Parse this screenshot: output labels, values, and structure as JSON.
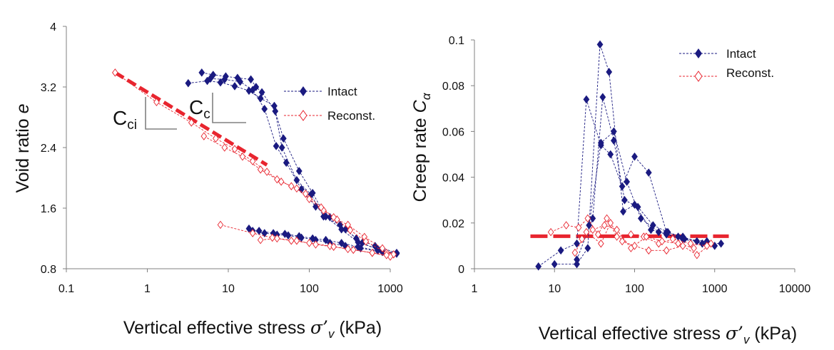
{
  "colors": {
    "intact": "#1a1a80",
    "reconst": "#e8252f",
    "axis": "#808080",
    "text": "#111111",
    "annot": "#808080"
  },
  "chart_data": [
    {
      "type": "scatter",
      "xscale": "log",
      "xlim": [
        0.1,
        1000
      ],
      "ylim": [
        0.8,
        4
      ],
      "xticks": [
        "0.1",
        "1",
        "10",
        "100",
        "1000"
      ],
      "yticks": [
        "0.8",
        "1.6",
        "2.4",
        "3.2",
        "4"
      ],
      "xlabel": "Vertical effective stress ",
      "xlabel_symbol": "σ’",
      "xlabel_sub": "v",
      "xlabel_unit": " (kPa)",
      "ylabel": "Void ratio ",
      "ylabel_symbol": "e",
      "legend": {
        "position": "right",
        "entries": [
          "Intact",
          "Reconst."
        ]
      },
      "annotations": {
        "cci": "C",
        "cci_sub": "ci",
        "cc": "C",
        "cc_sub": "c"
      },
      "cci_line": {
        "x": [
          0.4,
          30
        ],
        "y": [
          3.39,
          2.17
        ]
      },
      "series": [
        {
          "name": "Intact",
          "marker": "filled-diamond",
          "paths": [
            {
              "x": [
                4.7,
                6.5,
                9.3,
                13,
                19,
                22,
                26,
                38,
                48,
                75,
                110,
                160,
                250,
                400,
                700,
                1200
              ],
              "y": [
                3.39,
                3.36,
                3.34,
                3.32,
                3.3,
                3.2,
                3.13,
                2.88,
                2.52,
                2.09,
                1.8,
                1.49,
                1.32,
                1.15,
                1.06,
                1.0
              ]
            },
            {
              "x": [
                3.2,
                5.5,
                8,
                12,
                18,
                25,
                37,
                46,
                70,
                105,
                150,
                240,
                380,
                650,
                1200
              ],
              "y": [
                3.25,
                3.28,
                3.26,
                3.21,
                3.15,
                3.05,
                2.95,
                2.4,
                1.97,
                1.78,
                1.49,
                1.38,
                1.2,
                1.1,
                1.01
              ]
            },
            {
              "x": [
                6,
                9,
                14,
                20,
                28,
                39,
                52,
                80,
                120,
                180,
                280,
                450,
                800
              ],
              "y": [
                3.31,
                3.3,
                3.27,
                3.16,
                2.91,
                2.42,
                2.2,
                1.85,
                1.62,
                1.48,
                1.32,
                1.14,
                1.03
              ]
            },
            {
              "x": [
                18,
                24,
                36,
                50,
                75,
                110,
                160,
                250,
                400,
                700,
                1200
              ],
              "y": [
                1.33,
                1.3,
                1.27,
                1.26,
                1.23,
                1.2,
                1.18,
                1.14,
                1.09,
                1.04,
                1.0
              ]
            },
            {
              "x": [
                20,
                28,
                40,
                55,
                80,
                120,
                180,
                280,
                430,
                800
              ],
              "y": [
                1.3,
                1.27,
                1.25,
                1.24,
                1.21,
                1.18,
                1.14,
                1.1,
                1.07,
                1.02
              ]
            }
          ]
        },
        {
          "name": "Reconst.",
          "marker": "open-diamond",
          "paths": [
            {
              "x": [
                0.4,
                1.3,
                3.5,
                7,
                12,
                20,
                30,
                45,
                70,
                100,
                150,
                220,
                300,
                480,
                800,
                1100
              ],
              "y": [
                3.39,
                3.0,
                2.73,
                2.52,
                2.38,
                2.22,
                2.08,
                1.95,
                1.86,
                1.72,
                1.57,
                1.45,
                1.38,
                1.22,
                1.07,
                0.99
              ]
            },
            {
              "x": [
                5,
                9,
                15,
                25,
                40,
                60,
                90,
                140,
                200,
                320,
                500,
                900
              ],
              "y": [
                2.55,
                2.4,
                2.28,
                2.11,
                1.98,
                1.89,
                1.79,
                1.61,
                1.48,
                1.31,
                1.16,
                1.01
              ]
            },
            {
              "x": [
                8,
                20,
                35,
                60,
                100,
                180,
                300,
                600,
                1000
              ],
              "y": [
                1.38,
                1.27,
                1.21,
                1.17,
                1.14,
                1.1,
                1.06,
                1.01,
                0.96
              ]
            },
            {
              "x": [
                25,
                40,
                70,
                120,
                200,
                350,
                600,
                900
              ],
              "y": [
                1.18,
                1.2,
                1.17,
                1.12,
                1.09,
                1.05,
                1.01,
                0.98
              ]
            }
          ]
        }
      ]
    },
    {
      "type": "scatter",
      "xscale": "log",
      "xlim": [
        1,
        10000
      ],
      "ylim": [
        0,
        0.1
      ],
      "xticks": [
        "1",
        "10",
        "100",
        "1000",
        "10000"
      ],
      "yticks": [
        "0",
        "0.02",
        "0.04",
        "0.06",
        "0.08",
        "0.1"
      ],
      "xlabel": "Vertical effective stress ",
      "xlabel_symbol": "σ’",
      "xlabel_sub": "v",
      "xlabel_unit": " (kPa)",
      "ylabel": "Creep rate ",
      "ylabel_symbol": "C",
      "ylabel_sub": "α",
      "legend": {
        "position": "top-right",
        "entries": [
          "Intact",
          "Reconst."
        ]
      },
      "reference_line": {
        "x": [
          5,
          1500
        ],
        "y": [
          0.0142,
          0.0142
        ]
      },
      "series": [
        {
          "name": "Intact",
          "marker": "filled-diamond",
          "paths": [
            {
              "x": [
                6.3,
                12,
                19,
                25,
                38,
                50,
                70,
                100,
                150,
                250,
                400,
                700,
                1200
              ],
              "y": [
                0.001,
                0.008,
                0.011,
                0.074,
                0.054,
                0.05,
                0.036,
                0.049,
                0.042,
                0.016,
                0.014,
                0.011,
                0.011
              ]
            },
            {
              "x": [
                10,
                19,
                26,
                37,
                48,
                72,
                100,
                160,
                250,
                400,
                700
              ],
              "y": [
                0.002,
                0.002,
                0.009,
                0.098,
                0.086,
                0.025,
                0.028,
                0.017,
                0.015,
                0.013,
                0.011
              ]
            },
            {
              "x": [
                19,
                30,
                40,
                55,
                75,
                110,
                170,
                260,
                420,
                800
              ],
              "y": [
                0.004,
                0.022,
                0.075,
                0.056,
                0.03,
                0.027,
                0.019,
                0.016,
                0.013,
                0.012
              ]
            },
            {
              "x": [
                27,
                38,
                55,
                80,
                120,
                200,
                350,
                600,
                1000
              ],
              "y": [
                0.019,
                0.055,
                0.06,
                0.038,
                0.022,
                0.016,
                0.014,
                0.012,
                0.01
              ]
            }
          ]
        },
        {
          "name": "Reconst.",
          "marker": "open-diamond",
          "paths": [
            {
              "x": [
                9,
                14,
                20,
                26,
                35,
                45,
                60,
                90,
                130,
                200,
                300,
                500,
                800
              ],
              "y": [
                0.016,
                0.019,
                0.018,
                0.022,
                0.015,
                0.022,
                0.014,
                0.015,
                0.014,
                0.011,
                0.013,
                0.011,
                0.01
              ]
            },
            {
              "x": [
                18,
                25,
                38,
                50,
                70,
                100,
                150,
                250,
                400,
                600,
                900
              ],
              "y": [
                0.007,
                0.016,
                0.011,
                0.02,
                0.012,
                0.01,
                0.008,
                0.008,
                0.01,
                0.006,
                0.011
              ]
            },
            {
              "x": [
                22,
                30,
                42,
                60,
                90,
                140,
                220,
                350,
                550
              ],
              "y": [
                0.013,
                0.017,
                0.019,
                0.017,
                0.009,
                0.014,
                0.012,
                0.011,
                0.009
              ]
            }
          ]
        }
      ]
    }
  ]
}
